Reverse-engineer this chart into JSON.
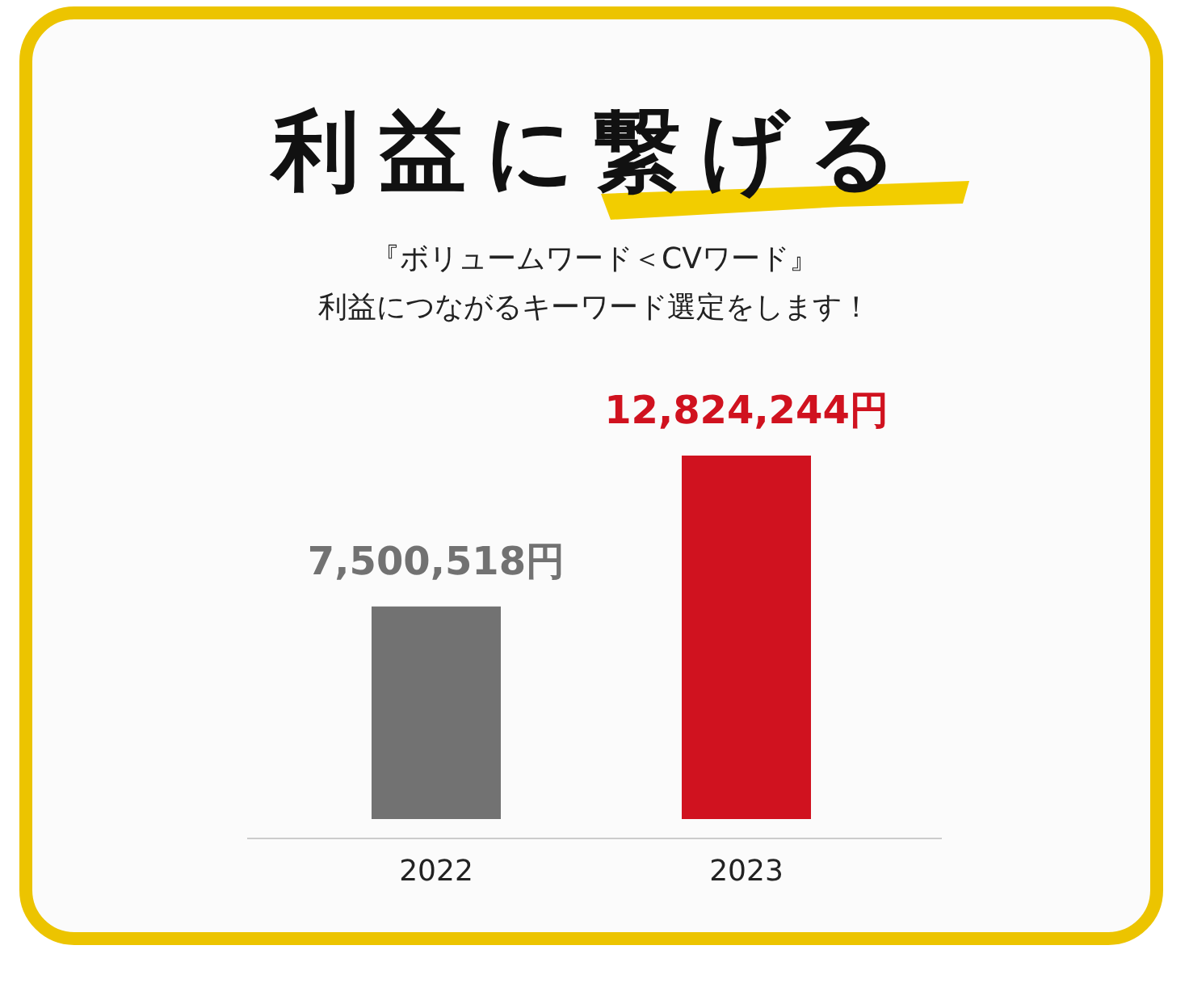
{
  "chart_data": {
    "type": "bar",
    "title": "利益に繋げる",
    "subtitle": "『ボリュームワード＜CVワード』",
    "annotations": [
      "利益につながるキーワード選定をします！"
    ],
    "categories": [
      "2022",
      "2023"
    ],
    "values": [
      7500518,
      12824244
    ],
    "colors": [
      "#727272",
      "#d0121f"
    ],
    "value_labels": [
      "7,500,518円",
      "12,824,244円"
    ]
  }
}
